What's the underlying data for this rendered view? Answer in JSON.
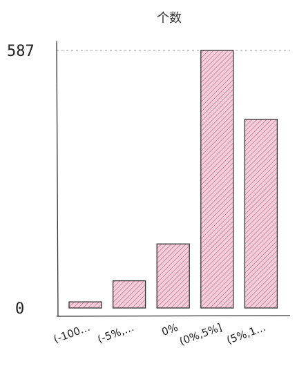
{
  "chart_data": {
    "type": "bar",
    "title": "个数",
    "xlabel": "",
    "ylabel": "",
    "categories": [
      "(-100…",
      "(-5%,…",
      "0%",
      "(0%,5%]",
      "(5%,1…"
    ],
    "values": [
      14,
      62,
      146,
      587,
      430
    ],
    "ylim": [
      0,
      587
    ],
    "ytick_labels": [
      "0",
      "587"
    ],
    "ytick_values": [
      0,
      587
    ],
    "reference_line": 587,
    "grid": false,
    "colors": {
      "bar_fill": "#e8a8bd",
      "bar_hatch": "#c9577a",
      "bar_stroke": "#333333",
      "axis": "#333333",
      "ref_line": "#999999"
    }
  }
}
